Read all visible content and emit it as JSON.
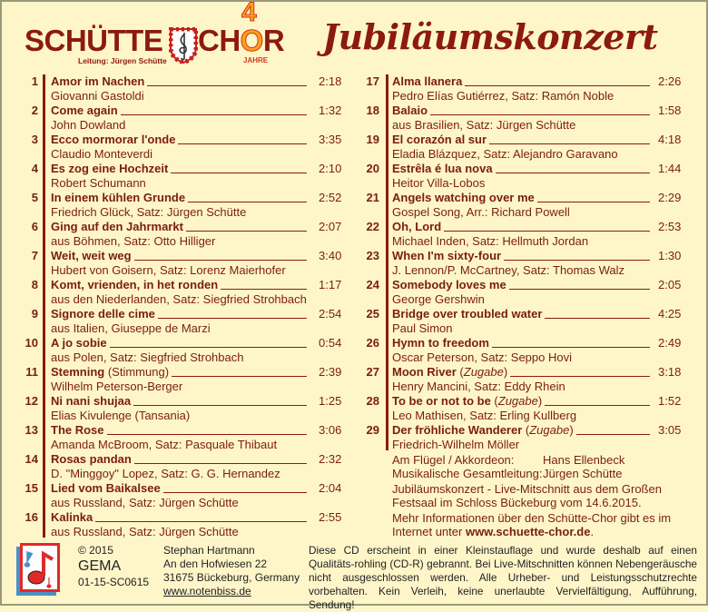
{
  "header": {
    "logo_left": "SCHÜTTE",
    "logo_right_pre": "CH",
    "logo_right_o": "O",
    "logo_right_post": "R",
    "logo_four": "4",
    "leitung": "Leitung: Jürgen Schütte",
    "jahre": "JAHRE",
    "title": "Jubiläumskonzert"
  },
  "colors": {
    "text": "#7b1d12",
    "background": "#fef6c9",
    "accent": "#f7a21b"
  },
  "tracks_left": [
    {
      "n": "1",
      "title": "Amor im Nachen",
      "note": "",
      "time": "2:18",
      "composer": "Giovanni Gastoldi"
    },
    {
      "n": "2",
      "title": "Come again",
      "note": "",
      "time": "1:32",
      "composer": "John Dowland"
    },
    {
      "n": "3",
      "title": "Ecco mormorar l'onde",
      "note": "",
      "time": "3:35",
      "composer": "Claudio Monteverdi"
    },
    {
      "n": "4",
      "title": "Es zog eine Hochzeit",
      "note": "",
      "time": "2:10",
      "composer": "Robert Schumann"
    },
    {
      "n": "5",
      "title": "In einem kühlen Grunde",
      "note": "",
      "time": "2:52",
      "composer": "Friedrich Glück, Satz: Jürgen Schütte"
    },
    {
      "n": "6",
      "title": "Ging auf den Jahrmarkt",
      "note": "",
      "time": "2:07",
      "composer": "aus Böhmen, Satz: Otto Hilliger"
    },
    {
      "n": "7",
      "title": "Weit, weit weg",
      "note": "",
      "time": "3:40",
      "composer": "Hubert von Goisern, Satz: Lorenz Maierhofer"
    },
    {
      "n": "8",
      "title": "Komt, vrienden, in het ronden",
      "note": "",
      "time": "1:17",
      "composer": "aus den Niederlanden, Satz: Siegfried Strohbach"
    },
    {
      "n": "9",
      "title": "Signore delle cime",
      "note": "",
      "time": "2:54",
      "composer": "aus Italien, Giuseppe de Marzi"
    },
    {
      "n": "10",
      "title": "A jo sobie",
      "note": "",
      "time": "0:54",
      "composer": "aus Polen, Satz: Siegfried Strohbach"
    },
    {
      "n": "11",
      "title": "Stemning",
      "note": " (Stimmung)",
      "time": "2:39",
      "composer": "Wilhelm Peterson-Berger"
    },
    {
      "n": "12",
      "title": "Ni nani shujaa",
      "note": "",
      "time": "1:25",
      "composer": "Elias Kivulenge (Tansania)"
    },
    {
      "n": "13",
      "title": "The Rose",
      "note": "",
      "time": "3:06",
      "composer": "Amanda McBroom, Satz: Pasquale Thibaut"
    },
    {
      "n": "14",
      "title": "Rosas pandan",
      "note": "",
      "time": "2:32",
      "composer": "D. \"Minggoy\" Lopez, Satz: G. G. Hernandez"
    },
    {
      "n": "15",
      "title": "Lied vom Baikalsee",
      "note": "",
      "time": "2:04",
      "composer": "aus Russland, Satz: Jürgen Schütte"
    },
    {
      "n": "16",
      "title": "Kalinka",
      "note": "",
      "time": "2:55",
      "composer": "aus Russland, Satz: Jürgen Schütte"
    }
  ],
  "tracks_right": [
    {
      "n": "17",
      "title": "Alma llanera",
      "note": "",
      "time": "2:26",
      "composer": "Pedro Elías Gutiérrez, Satz: Ramón Noble"
    },
    {
      "n": "18",
      "title": "Balaio",
      "note": "",
      "time": "1:58",
      "composer": "aus Brasilien, Satz: Jürgen Schütte"
    },
    {
      "n": "19",
      "title": "El corazón al sur",
      "note": "",
      "time": "4:18",
      "composer": "Eladia Blázquez, Satz: Alejandro  Garavano"
    },
    {
      "n": "20",
      "title": "Estrêla é lua nova",
      "note": "",
      "time": "1:44",
      "composer": "Heitor Villa-Lobos"
    },
    {
      "n": "21",
      "title": "Angels watching over me",
      "note": "",
      "time": "2:29",
      "composer": "Gospel Song, Arr.: Richard Powell"
    },
    {
      "n": "22",
      "title": "Oh, Lord",
      "note": "",
      "time": "2:53",
      "composer": "Michael Inden, Satz: Hellmuth Jordan"
    },
    {
      "n": "23",
      "title": "When I'm sixty-four",
      "note": "",
      "time": "1:30",
      "composer": "J. Lennon/P. McCartney, Satz: Thomas Walz"
    },
    {
      "n": "24",
      "title": "Somebody loves me",
      "note": "",
      "time": "2:05",
      "composer": "George Gershwin"
    },
    {
      "n": "25",
      "title": "Bridge over troubled water",
      "note": "",
      "time": "4:25",
      "composer": "Paul Simon"
    },
    {
      "n": "26",
      "title": "Hymn to freedom",
      "note": "",
      "time": "2:49",
      "composer": "Oscar Peterson, Satz: Seppo Hovi"
    },
    {
      "n": "27",
      "title": "Moon River",
      "note": " (Zugabe)",
      "time": "3:18",
      "composer": "Henry Mancini, Satz: Eddy Rhein"
    },
    {
      "n": "28",
      "title": "To be or not to be",
      "note": " (Zugabe)",
      "time": "1:52",
      "composer": "Leo Mathisen, Satz: Erling Kullberg"
    },
    {
      "n": "29",
      "title": "Der fröhliche Wanderer",
      "note": " (Zugabe)",
      "time": "3:05",
      "composer": "Friedrich-Wilhelm Möller"
    }
  ],
  "credits": {
    "piano_label": "Am Flügel / Akkordeon:",
    "piano_name": "Hans Ellenbeck",
    "director_label": "Musikalische Gesamtleitung:",
    "director_name": "Jürgen Schütte",
    "recording": "Jubiläumskonzert - Live-Mitschnitt aus dem Großen Festsaal im Schloss Bückeburg vom 14.6.2015.",
    "more_info": "Mehr Informationen über den Schütte-Chor gibt es im Internet unter ",
    "website": "www.schuette-chor.de",
    "period": "."
  },
  "footer": {
    "copyright": "© 2015",
    "gema": "GEMA",
    "catalog": "01-15-SC0615",
    "publisher": "Stephan Hartmann",
    "street": "An den Hofwiesen 22",
    "city": "31675 Bückeburg, Germany",
    "url": "www.notenbiss.de",
    "disclaimer": "Diese CD erscheint in einer Kleinstauflage und wurde deshalb auf einen Qualitäts-rohling (CD-R) gebrannt. Bei Live-Mitschnitten können Nebengeräusche nicht ausgeschlossen werden. Alle Urheber- und Leistungsschutzrechte vorbehalten. Kein Verleih, keine unerlaubte Vervielfältigung, Aufführung, Sendung!"
  }
}
